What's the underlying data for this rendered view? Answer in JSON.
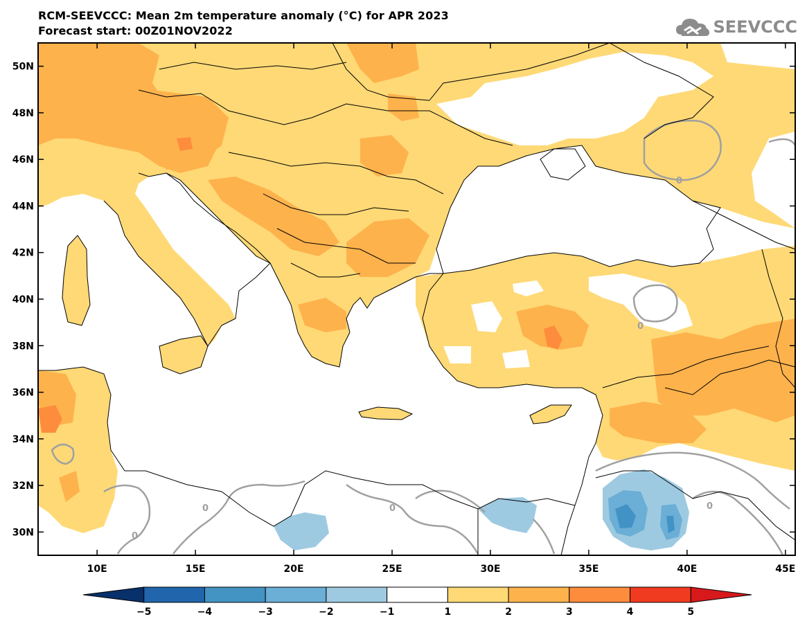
{
  "header": {
    "title_line1": "RCM-SEEVCCC: Mean 2m temperature anomaly (°C) for APR 2023",
    "title_line2": "Forecast start: 00Z01NOV2022"
  },
  "logo": {
    "text": "SEEVCCC",
    "icon": "cloud-logo-icon"
  },
  "map": {
    "lon_range": [
      7,
      45.5
    ],
    "lat_range": [
      29,
      51
    ],
    "lon_ticks": [
      "10E",
      "15E",
      "20E",
      "25E",
      "30E",
      "35E",
      "40E",
      "45E"
    ],
    "lon_tick_values": [
      10,
      15,
      20,
      25,
      30,
      35,
      40,
      45
    ],
    "lat_ticks": [
      "50N",
      "48N",
      "46N",
      "44N",
      "42N",
      "40N",
      "38N",
      "36N",
      "34N",
      "32N",
      "30N"
    ],
    "lat_tick_values": [
      50,
      48,
      46,
      44,
      42,
      40,
      38,
      36,
      34,
      32,
      30
    ],
    "contour_label": "0",
    "colors": {
      "land_warm_1_2": "#fed976",
      "land_warm_2_3": "#feb24c",
      "land_warm_3_4": "#fd8d3c",
      "cool_m2_m1": "#9ecae1",
      "cool_m3_m2": "#6baed6",
      "cool_m4_m3": "#4292c6",
      "contour": "#a0a0a0",
      "border": "#000000"
    }
  },
  "colorbar": {
    "labels": [
      "−5",
      "−4",
      "−3",
      "−2",
      "−1",
      "1",
      "2",
      "3",
      "4",
      "5"
    ],
    "colors": [
      "#08306b",
      "#2166ac",
      "#4393c3",
      "#6baed6",
      "#9ecae1",
      "#ffffff",
      "#fed976",
      "#feb24c",
      "#fd8d3c",
      "#f03b20",
      "#d7191c"
    ]
  }
}
